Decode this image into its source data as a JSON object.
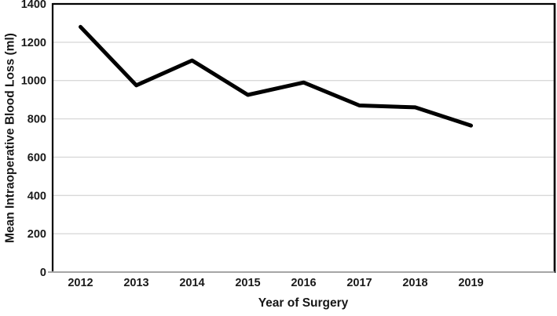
{
  "chart_data": {
    "type": "line",
    "title": "",
    "xlabel": "Year of Surgery",
    "ylabel": "Mean Intraoperative Blood Loss (ml)",
    "categories": [
      "2012",
      "2013",
      "2014",
      "2015",
      "2016",
      "2017",
      "2018",
      "2019"
    ],
    "values": [
      1280,
      975,
      1105,
      925,
      990,
      870,
      860,
      765
    ],
    "ylim": [
      0,
      1400
    ],
    "yticks": [
      0,
      200,
      400,
      600,
      800,
      1000,
      1200,
      1400
    ],
    "grid": "horizontal",
    "legend": "none",
    "x_slot_count": 9,
    "line_color": "#000000",
    "line_width": 5,
    "gridline_color": "#d9d9d9",
    "x_axis_line_color": "#a6a6a6",
    "frame_color": "#000000",
    "text_color": "#1a1a1a"
  }
}
